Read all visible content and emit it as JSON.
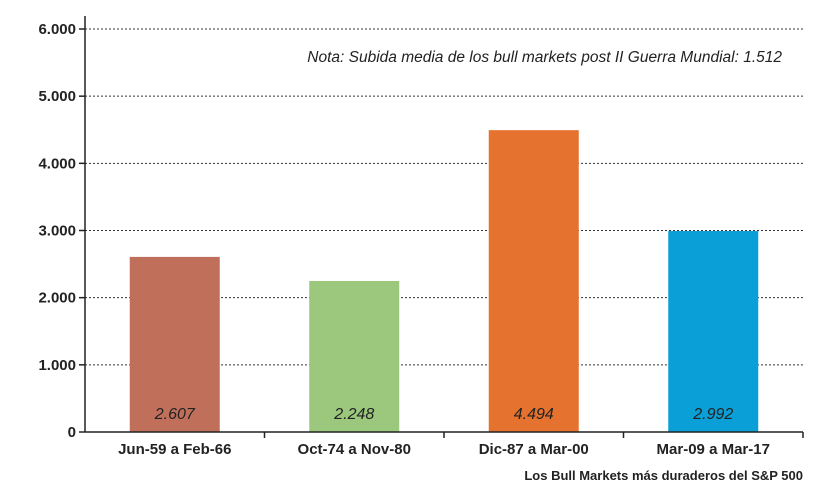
{
  "chart_data": {
    "type": "bar",
    "categories": [
      "Jun-59 a Feb-66",
      "Oct-74 a Nov-80",
      "Dic-87 a Mar-00",
      "Mar-09 a Mar-17"
    ],
    "values": [
      2607,
      2248,
      4494,
      2992
    ],
    "value_labels": [
      "2.607",
      "2.248",
      "4.494",
      "2.992"
    ],
    "colors": [
      "#c0705a",
      "#9bc87c",
      "#e5732f",
      "#0a9fd6"
    ],
    "ylim": [
      0,
      6000
    ],
    "yticks": [
      0,
      1000,
      2000,
      3000,
      4000,
      5000,
      6000
    ],
    "ytick_labels": [
      "0",
      "1.000",
      "2.000",
      "3.000",
      "4.000",
      "5.000",
      "6.000"
    ],
    "grid": true,
    "note": "Nota: Subida media de los bull markets post II Guerra Mundial: 1.512",
    "footer": "Los Bull Markets más duraderos del S&P 500"
  }
}
